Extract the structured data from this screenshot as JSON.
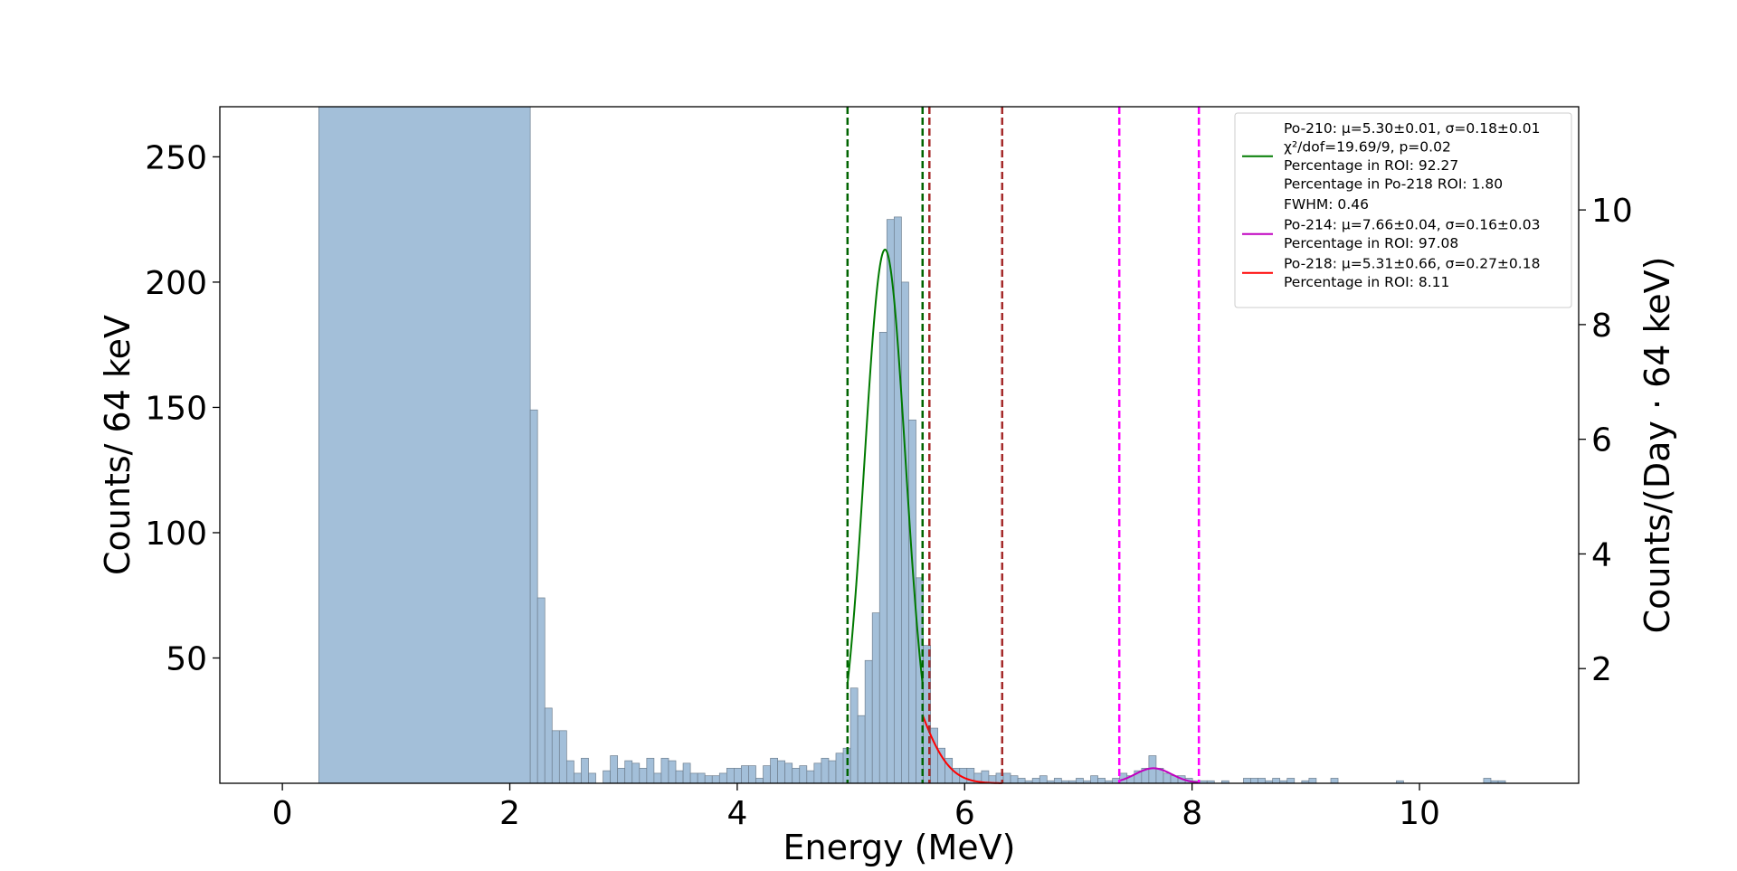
{
  "chart_data": {
    "type": "histogram",
    "xlabel": "Energy (MeV)",
    "ylabel": "Counts/ 64 keV",
    "ylabel_right": "Counts/(Day · 64 keV)",
    "xlim": [
      -0.55,
      11.4
    ],
    "ylim": [
      0,
      270
    ],
    "ylim_right": [
      0,
      11.8
    ],
    "x_ticks": [
      0,
      2,
      4,
      6,
      8,
      10
    ],
    "x_tick_labels": [
      "0",
      "2",
      "4",
      "6",
      "8",
      "10"
    ],
    "y_ticks": [
      50,
      100,
      150,
      200,
      250
    ],
    "y_tick_labels": [
      "50",
      "100",
      "150",
      "200",
      "250"
    ],
    "y_right_ticks": [
      2,
      4,
      6,
      8,
      10
    ],
    "y_right_tick_labels": [
      "2",
      "4",
      "6",
      "8",
      "10"
    ],
    "bin_width": 0.064,
    "bar_color": "#a3bfd9",
    "bar_edge_color": "#6f7f8f",
    "histogram": {
      "x_start": 0.32,
      "counts": [
        270,
        270,
        270,
        270,
        270,
        270,
        270,
        270,
        270,
        270,
        270,
        270,
        270,
        270,
        270,
        270,
        270,
        270,
        270,
        270,
        270,
        270,
        270,
        270,
        270,
        270,
        270,
        270,
        270,
        270,
        270,
        270,
        270,
        270,
        270,
        270,
        270,
        270,
        270,
        270,
        270,
        270,
        270,
        270,
        270,
        270,
        270,
        270,
        270,
        270,
        270,
        270,
        270,
        270,
        270,
        270,
        270,
        270,
        270,
        270,
        270,
        270,
        270,
        270,
        270,
        270,
        270,
        270,
        270,
        270,
        270,
        270,
        270,
        270,
        270,
        270,
        270,
        270,
        270,
        270,
        270,
        270,
        270,
        270,
        270,
        270,
        270,
        270,
        270,
        270,
        270,
        270,
        270,
        270,
        270,
        270,
        270,
        270,
        270,
        270,
        270,
        270,
        270,
        270,
        270,
        270,
        270,
        270,
        270,
        270,
        270,
        270,
        270,
        270,
        270,
        270,
        270,
        270,
        270,
        270,
        270,
        270,
        270,
        270,
        270,
        270,
        270,
        270,
        270,
        270,
        270,
        270,
        270,
        270,
        270,
        270,
        270,
        270,
        270,
        270,
        270,
        270,
        270,
        270,
        270,
        270,
        270,
        270,
        270,
        270,
        270,
        270,
        270,
        270,
        270,
        270,
        270,
        270,
        270,
        270,
        270,
        270,
        270,
        270,
        270,
        270,
        270,
        270,
        270,
        270,
        270,
        270,
        270,
        270,
        270,
        270,
        270,
        270,
        270,
        270,
        270,
        270,
        270,
        270,
        270,
        270,
        270,
        270,
        270,
        270,
        270,
        270,
        270,
        270,
        270,
        270,
        270,
        270,
        270,
        270,
        270,
        270,
        270,
        270,
        270,
        270,
        270,
        270,
        270,
        270,
        270,
        270,
        270,
        270,
        270,
        270,
        270,
        270,
        270,
        270,
        270,
        270,
        270,
        270,
        270,
        270,
        270,
        270,
        270,
        270,
        270,
        270,
        270,
        270,
        270,
        270,
        270,
        270,
        270,
        270,
        270,
        270,
        270,
        270,
        270,
        270,
        270,
        270,
        270,
        270,
        270,
        270,
        270,
        270,
        270,
        270,
        270,
        270,
        270,
        270,
        270,
        270,
        270,
        270,
        270,
        270,
        270
      ]
    },
    "bins": [
      {
        "x0": 0.32,
        "x1": 2.18,
        "c": 270
      },
      {
        "x0": 2.18,
        "x1": 2.244,
        "c": 149
      },
      {
        "x0": 2.244,
        "x1": 2.308,
        "c": 74
      },
      {
        "x0": 2.308,
        "x1": 2.372,
        "c": 30
      },
      {
        "x0": 2.372,
        "x1": 2.436,
        "c": 21
      },
      {
        "x0": 2.436,
        "x1": 2.5,
        "c": 21
      },
      {
        "x0": 2.5,
        "x1": 2.564,
        "c": 9
      },
      {
        "x0": 2.564,
        "x1": 2.628,
        "c": 4
      },
      {
        "x0": 2.628,
        "x1": 2.692,
        "c": 10
      },
      {
        "x0": 2.692,
        "x1": 2.756,
        "c": 4
      },
      {
        "x0": 2.756,
        "x1": 2.82,
        "c": 0
      },
      {
        "x0": 2.82,
        "x1": 2.884,
        "c": 5
      },
      {
        "x0": 2.884,
        "x1": 2.948,
        "c": 11
      },
      {
        "x0": 2.948,
        "x1": 3.012,
        "c": 6
      },
      {
        "x0": 3.012,
        "x1": 3.076,
        "c": 9
      },
      {
        "x0": 3.076,
        "x1": 3.14,
        "c": 8
      },
      {
        "x0": 3.14,
        "x1": 3.204,
        "c": 6
      },
      {
        "x0": 3.204,
        "x1": 3.268,
        "c": 10
      },
      {
        "x0": 3.268,
        "x1": 3.332,
        "c": 4
      },
      {
        "x0": 3.332,
        "x1": 3.396,
        "c": 10
      },
      {
        "x0": 3.396,
        "x1": 3.46,
        "c": 9
      },
      {
        "x0": 3.46,
        "x1": 3.524,
        "c": 5
      },
      {
        "x0": 3.524,
        "x1": 3.588,
        "c": 8
      },
      {
        "x0": 3.588,
        "x1": 3.652,
        "c": 4
      },
      {
        "x0": 3.652,
        "x1": 3.716,
        "c": 4
      },
      {
        "x0": 3.716,
        "x1": 3.78,
        "c": 3
      },
      {
        "x0": 3.78,
        "x1": 3.844,
        "c": 3
      },
      {
        "x0": 3.844,
        "x1": 3.908,
        "c": 4
      },
      {
        "x0": 3.908,
        "x1": 3.972,
        "c": 6
      },
      {
        "x0": 3.972,
        "x1": 4.036,
        "c": 6
      },
      {
        "x0": 4.036,
        "x1": 4.1,
        "c": 7
      },
      {
        "x0": 4.1,
        "x1": 4.164,
        "c": 7
      },
      {
        "x0": 4.164,
        "x1": 4.228,
        "c": 2
      },
      {
        "x0": 4.228,
        "x1": 4.292,
        "c": 7
      },
      {
        "x0": 4.292,
        "x1": 4.356,
        "c": 10
      },
      {
        "x0": 4.356,
        "x1": 4.42,
        "c": 9
      },
      {
        "x0": 4.42,
        "x1": 4.484,
        "c": 8
      },
      {
        "x0": 4.484,
        "x1": 4.548,
        "c": 6
      },
      {
        "x0": 4.548,
        "x1": 4.612,
        "c": 7
      },
      {
        "x0": 4.612,
        "x1": 4.676,
        "c": 5
      },
      {
        "x0": 4.676,
        "x1": 4.74,
        "c": 8
      },
      {
        "x0": 4.74,
        "x1": 4.804,
        "c": 10
      },
      {
        "x0": 4.804,
        "x1": 4.868,
        "c": 9
      },
      {
        "x0": 4.868,
        "x1": 4.932,
        "c": 12
      },
      {
        "x0": 4.932,
        "x1": 4.996,
        "c": 14
      },
      {
        "x0": 4.996,
        "x1": 5.06,
        "c": 38
      },
      {
        "x0": 5.06,
        "x1": 5.124,
        "c": 27
      },
      {
        "x0": 5.124,
        "x1": 5.188,
        "c": 49
      },
      {
        "x0": 5.188,
        "x1": 5.252,
        "c": 68
      },
      {
        "x0": 5.252,
        "x1": 5.316,
        "c": 180
      },
      {
        "x0": 5.316,
        "x1": 5.38,
        "c": 225
      },
      {
        "x0": 5.38,
        "x1": 5.444,
        "c": 226
      },
      {
        "x0": 5.444,
        "x1": 5.508,
        "c": 200
      },
      {
        "x0": 5.508,
        "x1": 5.572,
        "c": 145
      },
      {
        "x0": 5.572,
        "x1": 5.636,
        "c": 82
      },
      {
        "x0": 5.636,
        "x1": 5.7,
        "c": 55
      },
      {
        "x0": 5.7,
        "x1": 5.764,
        "c": 22
      },
      {
        "x0": 5.764,
        "x1": 5.828,
        "c": 14
      },
      {
        "x0": 5.828,
        "x1": 5.892,
        "c": 10
      },
      {
        "x0": 5.892,
        "x1": 5.956,
        "c": 6
      },
      {
        "x0": 5.956,
        "x1": 6.02,
        "c": 6
      },
      {
        "x0": 6.02,
        "x1": 6.084,
        "c": 6
      },
      {
        "x0": 6.084,
        "x1": 6.148,
        "c": 4
      },
      {
        "x0": 6.148,
        "x1": 6.212,
        "c": 5
      },
      {
        "x0": 6.212,
        "x1": 6.276,
        "c": 3
      },
      {
        "x0": 6.276,
        "x1": 6.34,
        "c": 4
      },
      {
        "x0": 6.34,
        "x1": 6.404,
        "c": 4
      },
      {
        "x0": 6.404,
        "x1": 6.468,
        "c": 3
      },
      {
        "x0": 6.468,
        "x1": 6.532,
        "c": 2
      },
      {
        "x0": 6.532,
        "x1": 6.596,
        "c": 1
      },
      {
        "x0": 6.596,
        "x1": 6.66,
        "c": 2
      },
      {
        "x0": 6.66,
        "x1": 6.724,
        "c": 3
      },
      {
        "x0": 6.724,
        "x1": 6.788,
        "c": 1
      },
      {
        "x0": 6.788,
        "x1": 6.852,
        "c": 2
      },
      {
        "x0": 6.852,
        "x1": 6.916,
        "c": 1
      },
      {
        "x0": 6.916,
        "x1": 6.98,
        "c": 1
      },
      {
        "x0": 6.98,
        "x1": 7.044,
        "c": 2
      },
      {
        "x0": 7.044,
        "x1": 7.108,
        "c": 1
      },
      {
        "x0": 7.108,
        "x1": 7.172,
        "c": 3
      },
      {
        "x0": 7.172,
        "x1": 7.236,
        "c": 2
      },
      {
        "x0": 7.236,
        "x1": 7.3,
        "c": 1
      },
      {
        "x0": 7.3,
        "x1": 7.364,
        "c": 2
      },
      {
        "x0": 7.364,
        "x1": 7.428,
        "c": 4
      },
      {
        "x0": 7.428,
        "x1": 7.492,
        "c": 3
      },
      {
        "x0": 7.492,
        "x1": 7.556,
        "c": 5
      },
      {
        "x0": 7.556,
        "x1": 7.62,
        "c": 6
      },
      {
        "x0": 7.62,
        "x1": 7.684,
        "c": 11
      },
      {
        "x0": 7.684,
        "x1": 7.748,
        "c": 6
      },
      {
        "x0": 7.748,
        "x1": 7.812,
        "c": 4
      },
      {
        "x0": 7.812,
        "x1": 7.876,
        "c": 3
      },
      {
        "x0": 7.876,
        "x1": 7.94,
        "c": 3
      },
      {
        "x0": 7.94,
        "x1": 8.004,
        "c": 2
      },
      {
        "x0": 8.004,
        "x1": 8.068,
        "c": 1
      },
      {
        "x0": 8.068,
        "x1": 8.132,
        "c": 1
      },
      {
        "x0": 8.132,
        "x1": 8.196,
        "c": 1
      },
      {
        "x0": 8.196,
        "x1": 8.26,
        "c": 0
      },
      {
        "x0": 8.26,
        "x1": 8.324,
        "c": 1
      },
      {
        "x0": 8.324,
        "x1": 8.388,
        "c": 0
      },
      {
        "x0": 8.388,
        "x1": 8.452,
        "c": 0
      },
      {
        "x0": 8.452,
        "x1": 8.516,
        "c": 2
      },
      {
        "x0": 8.516,
        "x1": 8.58,
        "c": 2
      },
      {
        "x0": 8.58,
        "x1": 8.644,
        "c": 2
      },
      {
        "x0": 8.644,
        "x1": 8.708,
        "c": 1
      },
      {
        "x0": 8.708,
        "x1": 8.772,
        "c": 2
      },
      {
        "x0": 8.772,
        "x1": 8.836,
        "c": 1
      },
      {
        "x0": 8.836,
        "x1": 8.9,
        "c": 2
      },
      {
        "x0": 8.9,
        "x1": 8.964,
        "c": 0
      },
      {
        "x0": 8.964,
        "x1": 9.028,
        "c": 1
      },
      {
        "x0": 9.028,
        "x1": 9.092,
        "c": 2
      },
      {
        "x0": 9.092,
        "x1": 9.156,
        "c": 0
      },
      {
        "x0": 9.156,
        "x1": 9.22,
        "c": 0
      },
      {
        "x0": 9.22,
        "x1": 9.284,
        "c": 2
      },
      {
        "x0": 9.284,
        "x1": 9.348,
        "c": 0
      },
      {
        "x0": 9.348,
        "x1": 9.412,
        "c": 0
      },
      {
        "x0": 9.412,
        "x1": 9.476,
        "c": 0
      },
      {
        "x0": 9.476,
        "x1": 9.54,
        "c": 0
      },
      {
        "x0": 9.54,
        "x1": 9.604,
        "c": 0
      },
      {
        "x0": 9.604,
        "x1": 9.668,
        "c": 0
      },
      {
        "x0": 9.668,
        "x1": 9.732,
        "c": 0
      },
      {
        "x0": 9.732,
        "x1": 9.796,
        "c": 0
      },
      {
        "x0": 9.796,
        "x1": 9.86,
        "c": 1
      },
      {
        "x0": 9.86,
        "x1": 9.924,
        "c": 0
      },
      {
        "x0": 9.924,
        "x1": 9.988,
        "c": 0
      },
      {
        "x0": 9.988,
        "x1": 10.052,
        "c": 0
      },
      {
        "x0": 10.052,
        "x1": 10.116,
        "c": 0
      },
      {
        "x0": 10.116,
        "x1": 10.18,
        "c": 0
      },
      {
        "x0": 10.18,
        "x1": 10.244,
        "c": 0
      },
      {
        "x0": 10.244,
        "x1": 10.308,
        "c": 0
      },
      {
        "x0": 10.308,
        "x1": 10.372,
        "c": 0
      },
      {
        "x0": 10.372,
        "x1": 10.436,
        "c": 0
      },
      {
        "x0": 10.436,
        "x1": 10.5,
        "c": 0
      },
      {
        "x0": 10.5,
        "x1": 10.564,
        "c": 0
      },
      {
        "x0": 10.564,
        "x1": 10.628,
        "c": 2
      },
      {
        "x0": 10.628,
        "x1": 10.692,
        "c": 1
      },
      {
        "x0": 10.692,
        "x1": 10.756,
        "c": 1
      }
    ],
    "vlines": [
      {
        "x": 4.97,
        "color": "#006400"
      },
      {
        "x": 5.63,
        "color": "#006400"
      },
      {
        "x": 5.69,
        "color": "#a52a2a"
      },
      {
        "x": 6.33,
        "color": "#a52a2a"
      },
      {
        "x": 7.36,
        "color": "#ff00ff"
      },
      {
        "x": 8.06,
        "color": "#ff00ff"
      }
    ],
    "fits": [
      {
        "name": "Po-210",
        "color": "#007a00",
        "mu": 5.3,
        "sigma": 0.18,
        "amp": 213,
        "xmin": 4.97,
        "xmax": 5.63
      },
      {
        "name": "Po-218",
        "color": "#ff0000",
        "mu": 5.31,
        "sigma": 0.27,
        "amp": 55,
        "xmin": 5.63,
        "xmax": 6.33
      },
      {
        "name": "Po-214",
        "color": "#c000c0",
        "mu": 7.66,
        "sigma": 0.16,
        "amp": 6,
        "xmin": 7.36,
        "xmax": 8.06
      }
    ],
    "legend": {
      "position": "top-right",
      "entries": [
        {
          "color": "#007a00",
          "lines": [
            "Po-210: μ=5.30±0.01, σ=0.18±0.01",
            "χ²/dof=19.69/9, p=0.02",
            "Percentage in ROI: 92.27",
            "Percentage in Po-218 ROI: 1.80"
          ]
        },
        {
          "color": null,
          "lines": [
            "FWHM: 0.46"
          ]
        },
        {
          "color": "#c000c0",
          "lines": [
            "Po-214: μ=7.66±0.04, σ=0.16±0.03",
            "Percentage in ROI: 97.08"
          ]
        },
        {
          "color": "#ff0000",
          "lines": [
            "Po-218: μ=5.31±0.66, σ=0.27±0.18",
            "Percentage in ROI: 8.11"
          ]
        }
      ]
    }
  }
}
